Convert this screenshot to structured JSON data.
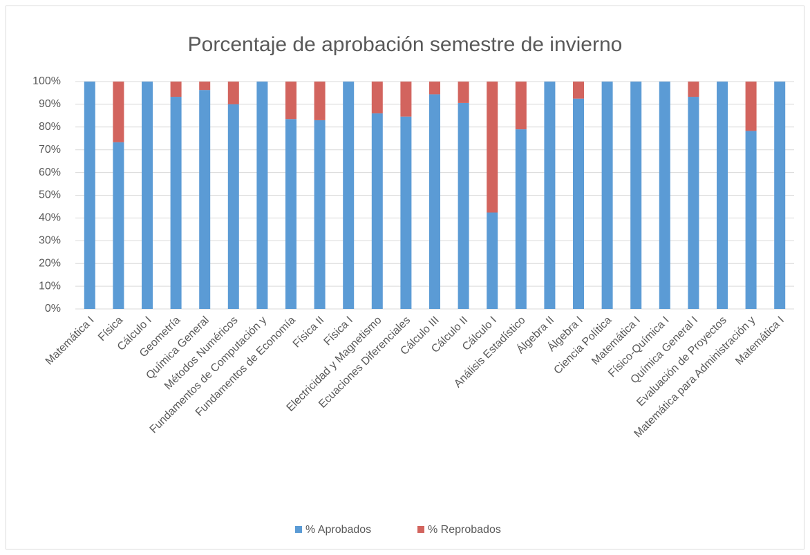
{
  "chart_data": {
    "type": "stacked_bar",
    "title": "Porcentaje de aprobación semestre de invierno",
    "categories": [
      "Matemática I",
      "Física",
      "Cálculo I",
      "Geometría",
      "Química General",
      "Métodos Numéricos",
      "Fundamentos de Computación y",
      "Fundamentos de Economía",
      "Física II",
      "Física I",
      "Electricidad y Magnetismo",
      "Ecuaciones Diferenciales",
      "Cálculo III",
      "Cálculo II",
      "Cálculo I",
      "Análisis Estadístico",
      "Álgebra II",
      "Álgebra I",
      "Ciencia Política",
      "Matemática I",
      "Físico-Química I",
      "Química General I",
      "Evaluación de Proyectos",
      "Matemática para Administración y",
      "Matemática I"
    ],
    "series": [
      {
        "name": "%  Aprobados",
        "color": "#5b9bd5",
        "values": [
          100,
          73.3,
          100,
          93.3,
          96.3,
          90,
          100,
          83.5,
          83,
          100,
          86,
          84.6,
          94.4,
          90.6,
          42.4,
          79,
          100,
          92.5,
          100,
          100,
          100,
          93.3,
          100,
          78.3,
          100
        ]
      },
      {
        "name": "% Reprobados",
        "color": "#d2645e",
        "values": [
          0,
          26.7,
          0,
          6.7,
          3.7,
          10,
          0,
          16.5,
          17,
          0,
          14,
          15.4,
          5.6,
          9.4,
          57.6,
          21,
          0,
          7.5,
          0,
          0,
          0,
          6.7,
          0,
          21.7,
          0
        ]
      }
    ],
    "ylim": [
      0,
      100
    ],
    "yticks": [
      {
        "value": 0,
        "label": "0%"
      },
      {
        "value": 10,
        "label": "10%"
      },
      {
        "value": 20,
        "label": "20%"
      },
      {
        "value": 30,
        "label": "30%"
      },
      {
        "value": 40,
        "label": "40%"
      },
      {
        "value": 50,
        "label": "50%"
      },
      {
        "value": 60,
        "label": "60%"
      },
      {
        "value": 70,
        "label": "70%"
      },
      {
        "value": 80,
        "label": "80%"
      },
      {
        "value": 90,
        "label": "90%"
      },
      {
        "value": 100,
        "label": "100%"
      }
    ],
    "grid": true,
    "legend": "bottom"
  }
}
